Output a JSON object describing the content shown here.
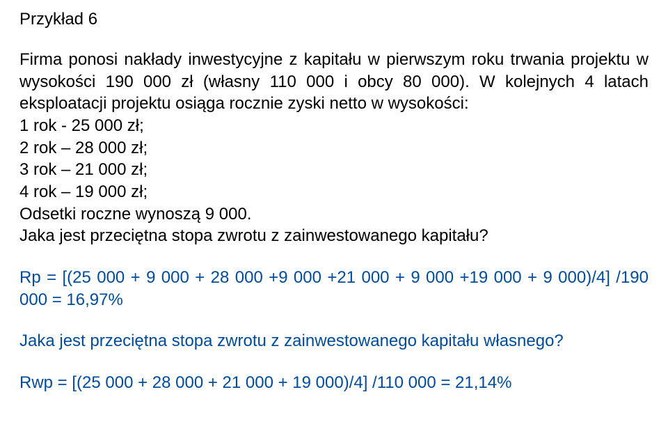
{
  "title": "Przykład 6",
  "intro": "Firma ponosi nakłady inwestycyjne z kapitału w pierwszym roku trwania projektu w wysokości 190 000 zł (własny 110 000 i obcy 80 000). W kolejnych 4 latach eksploatacji projektu osiąga rocznie zyski netto w wysokości:",
  "lines": {
    "r1": "1 rok - 25 000 zł;",
    "r2": "2 rok – 28 000 zł;",
    "r3": "3 rok – 21 000 zł;",
    "r4": "4 rok – 19 000 zł;",
    "interest": "Odsetki roczne wynoszą 9 000.",
    "q1": "Jaka jest przeciętna stopa zwrotu z zainwestowanego kapitału?"
  },
  "formula1": "Rp = [(25 000 + 9 000 + 28 000 +9 000 +21 000 + 9 000 +19 000 + 9 000)/4] /190 000 = 16,97%",
  "q2": "Jaka jest przeciętna stopa zwrotu z zainwestowanego kapitału własnego?",
  "formula2": "Rwp = [(25 000 + 28 000 + 21 000 + 19 000)/4] /110 000 = 21,14%",
  "colors": {
    "text": "#000000",
    "accent": "#004b9b",
    "background": "#ffffff"
  },
  "font": {
    "family": "Arial",
    "size_pt": 18
  }
}
